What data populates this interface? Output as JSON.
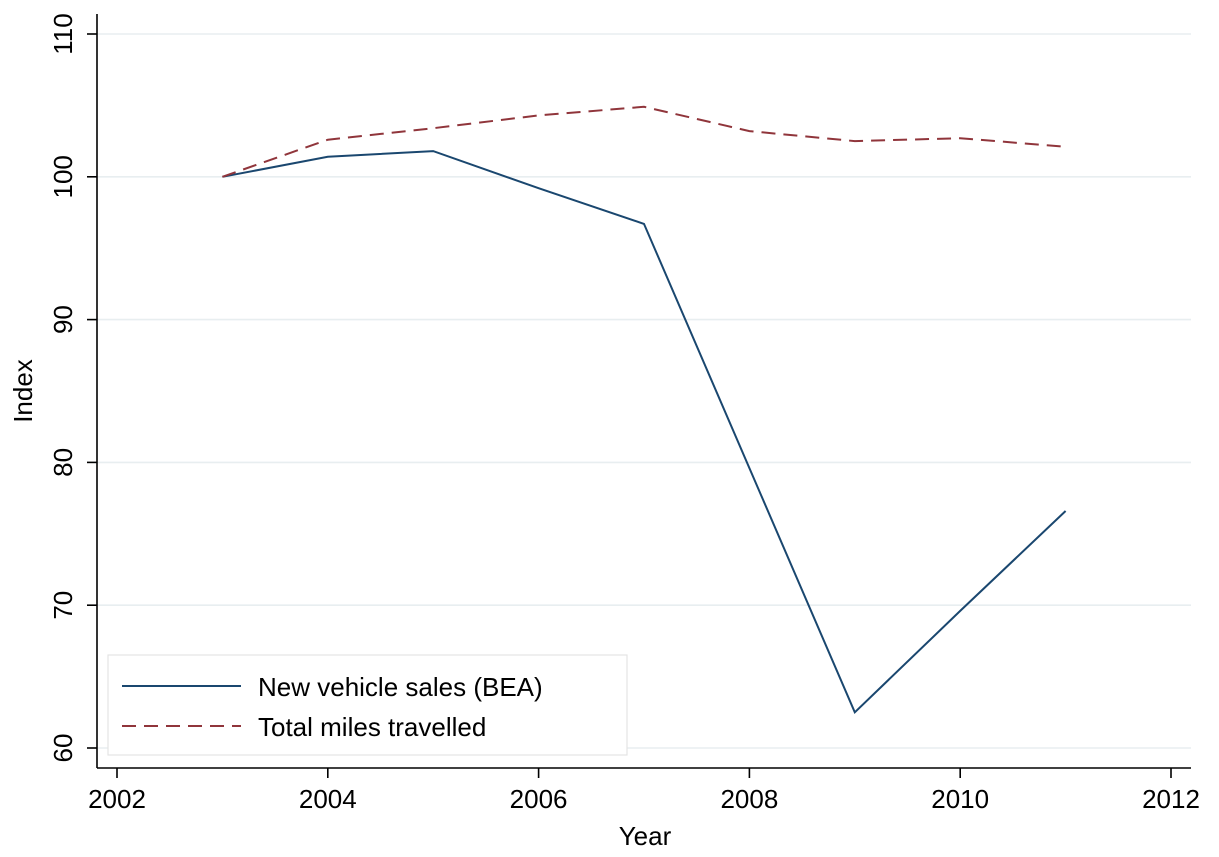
{
  "chart_data": {
    "type": "line",
    "xlabel": "Year",
    "ylabel": "Index",
    "xlim": [
      2002,
      2012
    ],
    "ylim": [
      60,
      110
    ],
    "xticks": [
      2002,
      2004,
      2006,
      2008,
      2010,
      2012
    ],
    "yticks": [
      60,
      70,
      80,
      90,
      100,
      110
    ],
    "grid": "horizontal",
    "legend_position": "bottom-left",
    "series": [
      {
        "name": "New vehicle sales (BEA)",
        "color": "#1a476f",
        "style": "solid",
        "x": [
          2003,
          2004,
          2005,
          2006,
          2007,
          2008,
          2009,
          2010,
          2011
        ],
        "y": [
          100.0,
          101.4,
          101.8,
          99.2,
          96.7,
          79.6,
          62.5,
          69.6,
          76.6
        ]
      },
      {
        "name": "Total miles travelled",
        "color": "#90353b",
        "style": "dashed",
        "x": [
          2003,
          2004,
          2005,
          2006,
          2007,
          2008,
          2009,
          2010,
          2011
        ],
        "y": [
          100.0,
          102.6,
          103.4,
          104.3,
          104.9,
          103.2,
          102.5,
          102.7,
          102.1
        ]
      }
    ]
  }
}
